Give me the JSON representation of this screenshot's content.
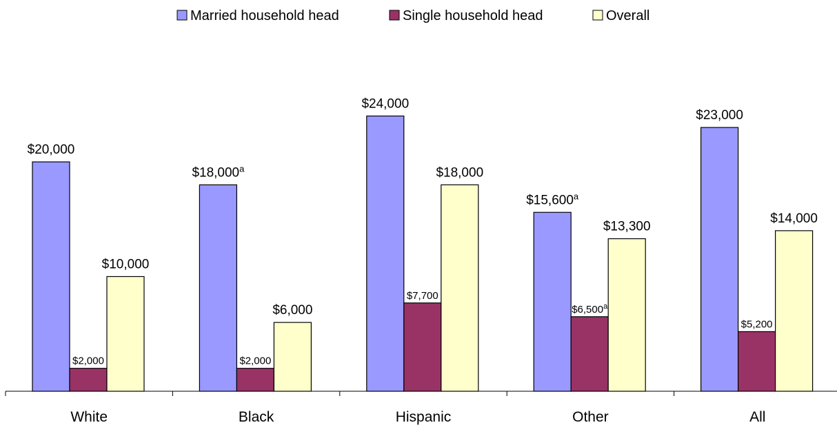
{
  "chart_data": {
    "type": "bar",
    "categories": [
      "White",
      "Black",
      "Hispanic",
      "Other",
      "All"
    ],
    "series": [
      {
        "name": "Married household head",
        "color": "#9999ff",
        "values": [
          20000,
          18000,
          24000,
          15600,
          23000
        ],
        "labels": [
          "$20,000",
          "$18,000",
          "$24,000",
          "$15,600",
          "$23,000"
        ],
        "footnotes": [
          "",
          "a",
          "",
          "a",
          ""
        ]
      },
      {
        "name": "Single household head",
        "color": "#993366",
        "values": [
          2000,
          2000,
          7700,
          6500,
          5200
        ],
        "labels": [
          "$2,000",
          "$2,000",
          "$7,700",
          "$6,500",
          "$5,200"
        ],
        "footnotes": [
          "",
          "",
          "",
          "a",
          ""
        ]
      },
      {
        "name": "Overall",
        "color": "#ffffcc",
        "values": [
          10000,
          6000,
          18000,
          13300,
          14000
        ],
        "labels": [
          "$10,000",
          "$6,000",
          "$18,000",
          "$13,300",
          "$14,000"
        ],
        "footnotes": [
          "",
          "",
          "",
          "",
          ""
        ]
      }
    ],
    "ylim": [
      0,
      30000
    ],
    "grid": false,
    "legend_position": "top"
  }
}
